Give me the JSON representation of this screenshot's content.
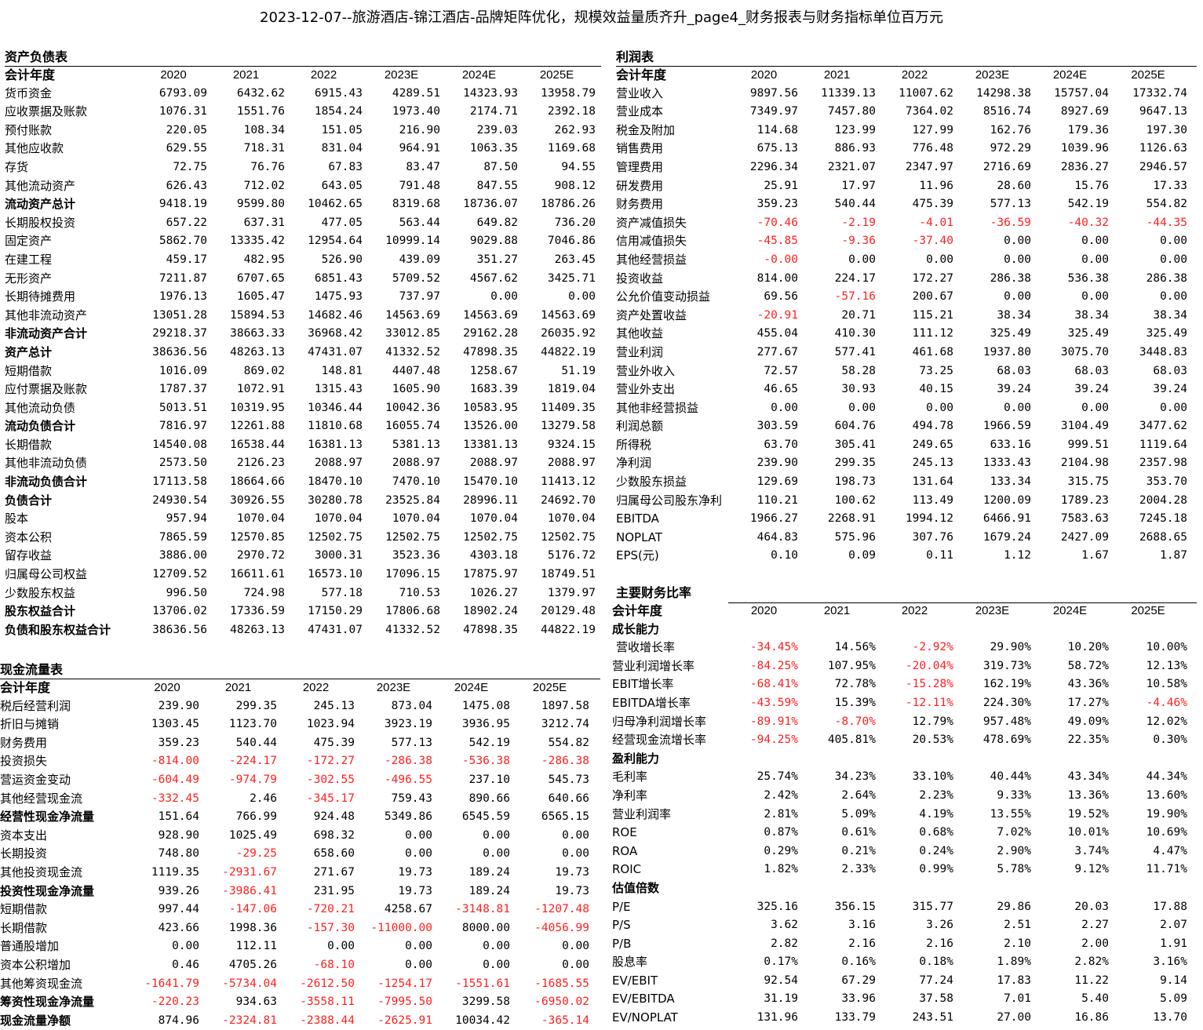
{
  "title": "2023-12-07--旅游酒店-锦江酒店-品牌矩阵优化，规模效益量质齐升_page4_财务报表与财务指标单位百万元",
  "colors": {
    "negative": "#ff1f1f"
  },
  "balance": {
    "title": "资产负债表",
    "header": [
      "会计年度",
      "2020",
      "2021",
      "2022",
      "2023E",
      "2024E",
      "2025E"
    ],
    "rows": [
      {
        "label": "货币资金",
        "values": [
          "6793.09",
          "6432.62",
          "6915.43",
          "4289.51",
          "14323.93",
          "13958.79"
        ]
      },
      {
        "label": "应收票据及账款",
        "values": [
          "1076.31",
          "1551.76",
          "1854.24",
          "1973.40",
          "2174.71",
          "2392.18"
        ]
      },
      {
        "label": "预付账款",
        "values": [
          "220.05",
          "108.34",
          "151.05",
          "216.90",
          "239.03",
          "262.93"
        ]
      },
      {
        "label": "其他应收款",
        "values": [
          "629.55",
          "718.31",
          "831.04",
          "964.91",
          "1063.35",
          "1169.68"
        ]
      },
      {
        "label": "存货",
        "values": [
          "72.75",
          "76.76",
          "67.83",
          "83.47",
          "87.50",
          "94.55"
        ]
      },
      {
        "label": "其他流动资产",
        "values": [
          "626.43",
          "712.02",
          "643.05",
          "791.48",
          "847.55",
          "908.12"
        ]
      },
      {
        "label": "流动资产总计",
        "bold": true,
        "values": [
          "9418.19",
          "9599.80",
          "10462.65",
          "8319.68",
          "18736.07",
          "18786.26"
        ]
      },
      {
        "label": "长期股权投资",
        "values": [
          "657.22",
          "637.31",
          "477.05",
          "563.44",
          "649.82",
          "736.20"
        ]
      },
      {
        "label": "固定资产",
        "values": [
          "5862.70",
          "13335.42",
          "12954.64",
          "10999.14",
          "9029.88",
          "7046.86"
        ]
      },
      {
        "label": "在建工程",
        "values": [
          "459.17",
          "482.95",
          "526.90",
          "439.09",
          "351.27",
          "263.45"
        ]
      },
      {
        "label": "无形资产",
        "values": [
          "7211.87",
          "6707.65",
          "6851.43",
          "5709.52",
          "4567.62",
          "3425.71"
        ]
      },
      {
        "label": "长期待摊费用",
        "values": [
          "1976.13",
          "1605.47",
          "1475.93",
          "737.97",
          "0.00",
          "0.00"
        ]
      },
      {
        "label": "其他非流动资产",
        "values": [
          "13051.28",
          "15894.53",
          "14682.46",
          "14563.69",
          "14563.69",
          "14563.69"
        ]
      },
      {
        "label": "非流动资产合计",
        "bold": true,
        "values": [
          "29218.37",
          "38663.33",
          "36968.42",
          "33012.85",
          "29162.28",
          "26035.92"
        ]
      },
      {
        "label": "资产总计",
        "bold": true,
        "values": [
          "38636.56",
          "48263.13",
          "47431.07",
          "41332.52",
          "47898.35",
          "44822.19"
        ]
      },
      {
        "label": "短期借款",
        "values": [
          "1016.09",
          "869.02",
          "148.81",
          "4407.48",
          "1258.67",
          "51.19"
        ]
      },
      {
        "label": "应付票据及账款",
        "values": [
          "1787.37",
          "1072.91",
          "1315.43",
          "1605.90",
          "1683.39",
          "1819.04"
        ]
      },
      {
        "label": "其他流动负债",
        "values": [
          "5013.51",
          "10319.95",
          "10346.44",
          "10042.36",
          "10583.95",
          "11409.35"
        ]
      },
      {
        "label": "流动负债合计",
        "bold": true,
        "values": [
          "7816.97",
          "12261.88",
          "11810.68",
          "16055.74",
          "13526.00",
          "13279.58"
        ]
      },
      {
        "label": "长期借款",
        "values": [
          "14540.08",
          "16538.44",
          "16381.13",
          "5381.13",
          "13381.13",
          "9324.15"
        ]
      },
      {
        "label": "其他非流动负债",
        "values": [
          "2573.50",
          "2126.23",
          "2088.97",
          "2088.97",
          "2088.97",
          "2088.97"
        ]
      },
      {
        "label": "非流动负债合计",
        "bold": true,
        "values": [
          "17113.58",
          "18664.66",
          "18470.10",
          "7470.10",
          "15470.10",
          "11413.12"
        ]
      },
      {
        "label": "负债合计",
        "bold": true,
        "values": [
          "24930.54",
          "30926.55",
          "30280.78",
          "23525.84",
          "28996.11",
          "24692.70"
        ]
      },
      {
        "label": "股本",
        "values": [
          "957.94",
          "1070.04",
          "1070.04",
          "1070.04",
          "1070.04",
          "1070.04"
        ]
      },
      {
        "label": "资本公积",
        "values": [
          "7865.59",
          "12570.85",
          "12502.75",
          "12502.75",
          "12502.75",
          "12502.75"
        ]
      },
      {
        "label": "留存收益",
        "values": [
          "3886.00",
          "2970.72",
          "3000.31",
          "3523.36",
          "4303.18",
          "5176.72"
        ]
      },
      {
        "label": "归属母公司权益",
        "values": [
          "12709.52",
          "16611.61",
          "16573.10",
          "17096.15",
          "17875.97",
          "18749.51"
        ]
      },
      {
        "label": "少数股东权益",
        "values": [
          "996.50",
          "724.98",
          "577.18",
          "710.53",
          "1026.27",
          "1379.97"
        ]
      },
      {
        "label": "股东权益合计",
        "bold": true,
        "values": [
          "13706.02",
          "17336.59",
          "17150.29",
          "17806.68",
          "18902.24",
          "20129.48"
        ]
      },
      {
        "label": "负债和股东权益合计",
        "bold": true,
        "values": [
          "38636.56",
          "48263.13",
          "47431.07",
          "41332.52",
          "47898.35",
          "44822.19"
        ]
      }
    ]
  },
  "cashflow": {
    "title": "现金流量表",
    "header": [
      "会计年度",
      "2020",
      "2021",
      "2022",
      "2023E",
      "2024E",
      "2025E"
    ],
    "rows": [
      {
        "label": "税后经营利润",
        "values": [
          "239.90",
          "299.35",
          "245.13",
          "873.04",
          "1475.08",
          "1897.58"
        ]
      },
      {
        "label": "折旧与摊销",
        "values": [
          "1303.45",
          "1123.70",
          "1023.94",
          "3923.19",
          "3936.95",
          "3212.74"
        ]
      },
      {
        "label": "财务费用",
        "values": [
          "359.23",
          "540.44",
          "475.39",
          "577.13",
          "542.19",
          "554.82"
        ]
      },
      {
        "label": "投资损失",
        "values": [
          "-814.00",
          "-224.17",
          "-172.27",
          "-286.38",
          "-536.38",
          "-286.38"
        ]
      },
      {
        "label": "营运资金变动",
        "values": [
          "-604.49",
          "-974.79",
          "-302.55",
          "-496.55",
          "237.10",
          "545.73"
        ]
      },
      {
        "label": "其他经营现金流",
        "values": [
          "-332.45",
          "2.46",
          "-345.17",
          "759.43",
          "890.66",
          "640.66"
        ]
      },
      {
        "label": "经营性现金净流量",
        "bold": true,
        "values": [
          "151.64",
          "766.99",
          "924.48",
          "5349.86",
          "6545.59",
          "6565.15"
        ]
      },
      {
        "label": "资本支出",
        "values": [
          "928.90",
          "1025.49",
          "698.32",
          "0.00",
          "0.00",
          "0.00"
        ]
      },
      {
        "label": "长期投资",
        "values": [
          "748.80",
          "-29.25",
          "658.60",
          "0.00",
          "0.00",
          "0.00"
        ]
      },
      {
        "label": "其他投资现金流",
        "values": [
          "1119.35",
          "-2931.67",
          "271.67",
          "19.73",
          "189.24",
          "19.73"
        ]
      },
      {
        "label": "投资性现金净流量",
        "bold": true,
        "values": [
          "939.26",
          "-3986.41",
          "231.95",
          "19.73",
          "189.24",
          "19.73"
        ]
      },
      {
        "label": "短期借款",
        "values": [
          "997.44",
          "-147.06",
          "-720.21",
          "4258.67",
          "-3148.81",
          "-1207.48"
        ]
      },
      {
        "label": "长期借款",
        "values": [
          "423.66",
          "1998.36",
          "-157.30",
          "-11000.00",
          "8000.00",
          "-4056.99"
        ]
      },
      {
        "label": "普通股增加",
        "values": [
          "0.00",
          "112.11",
          "0.00",
          "0.00",
          "0.00",
          "0.00"
        ]
      },
      {
        "label": "资本公积增加",
        "values": [
          "0.46",
          "4705.26",
          "-68.10",
          "0.00",
          "0.00",
          "0.00"
        ]
      },
      {
        "label": "其他筹资现金流",
        "values": [
          "-1641.79",
          "-5734.04",
          "-2612.50",
          "-1254.17",
          "-1551.61",
          "-1685.55"
        ]
      },
      {
        "label": "筹资性现金净流量",
        "bold": true,
        "values": [
          "-220.23",
          "934.63",
          "-3558.11",
          "-7995.50",
          "3299.58",
          "-6950.02"
        ]
      },
      {
        "label": "现金流量净额",
        "bold": true,
        "values": [
          "874.96",
          "-2324.81",
          "-2388.44",
          "-2625.91",
          "10034.42",
          "-365.14"
        ]
      }
    ]
  },
  "income": {
    "title": "利润表",
    "header": [
      "会计年度",
      "2020",
      "2021",
      "2022",
      "2023E",
      "2024E",
      "2025E"
    ],
    "rows": [
      {
        "label": "营业收入",
        "values": [
          "9897.56",
          "11339.13",
          "11007.62",
          "14298.38",
          "15757.04",
          "17332.74"
        ]
      },
      {
        "label": "营业成本",
        "values": [
          "7349.97",
          "7457.80",
          "7364.02",
          "8516.74",
          "8927.69",
          "9647.13"
        ]
      },
      {
        "label": "税金及附加",
        "values": [
          "114.68",
          "123.99",
          "127.99",
          "162.76",
          "179.36",
          "197.30"
        ]
      },
      {
        "label": "销售费用",
        "values": [
          "675.13",
          "886.93",
          "776.48",
          "972.29",
          "1039.96",
          "1126.63"
        ]
      },
      {
        "label": "管理费用",
        "values": [
          "2296.34",
          "2321.07",
          "2347.97",
          "2716.69",
          "2836.27",
          "2946.57"
        ]
      },
      {
        "label": "研发费用",
        "values": [
          "25.91",
          "17.97",
          "11.96",
          "28.60",
          "15.76",
          "17.33"
        ]
      },
      {
        "label": "财务费用",
        "values": [
          "359.23",
          "540.44",
          "475.39",
          "577.13",
          "542.19",
          "554.82"
        ]
      },
      {
        "label": "资产减值损失",
        "values": [
          "-70.46",
          "-2.19",
          "-4.01",
          "-36.59",
          "-40.32",
          "-44.35"
        ]
      },
      {
        "label": "信用减值损失",
        "values": [
          "-45.85",
          "-9.36",
          "-37.40",
          "0.00",
          "0.00",
          "0.00"
        ]
      },
      {
        "label": "其他经营损益",
        "values": [
          "-0.00",
          "0.00",
          "0.00",
          "0.00",
          "0.00",
          "0.00"
        ]
      },
      {
        "label": "投资收益",
        "values": [
          "814.00",
          "224.17",
          "172.27",
          "286.38",
          "536.38",
          "286.38"
        ]
      },
      {
        "label": "公允价值变动损益",
        "values": [
          "69.56",
          "-57.16",
          "200.67",
          "0.00",
          "0.00",
          "0.00"
        ]
      },
      {
        "label": "资产处置收益",
        "values": [
          "-20.91",
          "20.71",
          "115.21",
          "38.34",
          "38.34",
          "38.34"
        ]
      },
      {
        "label": "其他收益",
        "values": [
          "455.04",
          "410.30",
          "111.12",
          "325.49",
          "325.49",
          "325.49"
        ]
      },
      {
        "label": "营业利润",
        "values": [
          "277.67",
          "577.41",
          "461.68",
          "1937.80",
          "3075.70",
          "3448.83"
        ]
      },
      {
        "label": "营业外收入",
        "values": [
          "72.57",
          "58.28",
          "73.25",
          "68.03",
          "68.03",
          "68.03"
        ]
      },
      {
        "label": "营业外支出",
        "values": [
          "46.65",
          "30.93",
          "40.15",
          "39.24",
          "39.24",
          "39.24"
        ]
      },
      {
        "label": "其他非经营损益",
        "values": [
          "0.00",
          "0.00",
          "0.00",
          "0.00",
          "0.00",
          "0.00"
        ]
      },
      {
        "label": "利润总额",
        "values": [
          "303.59",
          "604.76",
          "494.78",
          "1966.59",
          "3104.49",
          "3477.62"
        ]
      },
      {
        "label": "所得税",
        "values": [
          "63.70",
          "305.41",
          "249.65",
          "633.16",
          "999.51",
          "1119.64"
        ]
      },
      {
        "label": "净利润",
        "values": [
          "239.90",
          "299.35",
          "245.13",
          "1333.43",
          "2104.98",
          "2357.98"
        ]
      },
      {
        "label": "少数股东损益",
        "values": [
          "129.69",
          "198.73",
          "131.64",
          "133.34",
          "315.75",
          "353.70"
        ]
      },
      {
        "label": "归属母公司股东净利",
        "values": [
          "110.21",
          "100.62",
          "113.49",
          "1200.09",
          "1789.23",
          "2004.28"
        ]
      },
      {
        "label": "EBITDA",
        "values": [
          "1966.27",
          "2268.91",
          "1994.12",
          "6466.91",
          "7583.63",
          "7245.18"
        ]
      },
      {
        "label": "NOPLAT",
        "values": [
          "464.83",
          "575.96",
          "307.76",
          "1679.24",
          "2427.09",
          "2688.65"
        ]
      },
      {
        "label": "EPS(元)",
        "values": [
          "0.10",
          "0.09",
          "0.11",
          "1.12",
          "1.67",
          "1.87"
        ]
      }
    ]
  },
  "ratios": {
    "title": "主要财务比率",
    "header": [
      "会计年度",
      "2020",
      "2021",
      "2022",
      "2023E",
      "2024E",
      "2025E"
    ],
    "rows": [
      {
        "label": "成长能力",
        "bold": true,
        "values": [
          "",
          "",
          "",
          "",
          "",
          ""
        ]
      },
      {
        "label": "营收增长率",
        "indent": true,
        "values": [
          "-34.45%",
          "14.56%",
          "-2.92%",
          "29.90%",
          "10.20%",
          "10.00%"
        ]
      },
      {
        "label": "营业利润增长率",
        "values": [
          "-84.25%",
          "107.95%",
          "-20.04%",
          "319.73%",
          "58.72%",
          "12.13%"
        ]
      },
      {
        "label": "EBIT增长率",
        "values": [
          "-68.41%",
          "72.78%",
          "-15.28%",
          "162.19%",
          "43.36%",
          "10.58%"
        ]
      },
      {
        "label": "EBITDA增长率",
        "values": [
          "-43.59%",
          "15.39%",
          "-12.11%",
          "224.30%",
          "17.27%",
          "-4.46%"
        ]
      },
      {
        "label": "归母净利润增长率",
        "values": [
          "-89.91%",
          "-8.70%",
          "12.79%",
          "957.48%",
          "49.09%",
          "12.02%"
        ]
      },
      {
        "label": "经营现金流增长率",
        "values": [
          "-94.25%",
          "405.81%",
          "20.53%",
          "478.69%",
          "22.35%",
          "0.30%"
        ]
      },
      {
        "label": "盈利能力",
        "bold": true,
        "values": [
          "",
          "",
          "",
          "",
          "",
          ""
        ]
      },
      {
        "label": "毛利率",
        "values": [
          "25.74%",
          "34.23%",
          "33.10%",
          "40.44%",
          "43.34%",
          "44.34%"
        ]
      },
      {
        "label": "净利率",
        "values": [
          "2.42%",
          "2.64%",
          "2.23%",
          "9.33%",
          "13.36%",
          "13.60%"
        ]
      },
      {
        "label": "营业利润率",
        "values": [
          "2.81%",
          "5.09%",
          "4.19%",
          "13.55%",
          "19.52%",
          "19.90%"
        ]
      },
      {
        "label": "ROE",
        "values": [
          "0.87%",
          "0.61%",
          "0.68%",
          "7.02%",
          "10.01%",
          "10.69%"
        ]
      },
      {
        "label": "ROA",
        "values": [
          "0.29%",
          "0.21%",
          "0.24%",
          "2.90%",
          "3.74%",
          "4.47%"
        ]
      },
      {
        "label": "ROIC",
        "values": [
          "1.82%",
          "2.33%",
          "0.99%",
          "5.78%",
          "9.12%",
          "11.71%"
        ]
      },
      {
        "label": "估值倍数",
        "bold": true,
        "values": [
          "",
          "",
          "",
          "",
          "",
          ""
        ]
      },
      {
        "label": "P/E",
        "values": [
          "325.16",
          "356.15",
          "315.77",
          "29.86",
          "20.03",
          "17.88"
        ]
      },
      {
        "label": "P/S",
        "values": [
          "3.62",
          "3.16",
          "3.26",
          "2.51",
          "2.27",
          "2.07"
        ]
      },
      {
        "label": "P/B",
        "values": [
          "2.82",
          "2.16",
          "2.16",
          "2.10",
          "2.00",
          "1.91"
        ]
      },
      {
        "label": "股息率",
        "values": [
          "0.17%",
          "0.16%",
          "0.18%",
          "1.89%",
          "2.82%",
          "3.16%"
        ]
      },
      {
        "label": "EV/EBIT",
        "values": [
          "92.54",
          "67.29",
          "77.24",
          "17.83",
          "11.22",
          "9.14"
        ]
      },
      {
        "label": "EV/EBITDA",
        "values": [
          "31.19",
          "33.96",
          "37.58",
          "7.01",
          "5.40",
          "5.09"
        ]
      },
      {
        "label": "EV/NOPLAT",
        "values": [
          "131.96",
          "133.79",
          "243.51",
          "27.00",
          "16.86",
          "13.70"
        ]
      }
    ]
  }
}
